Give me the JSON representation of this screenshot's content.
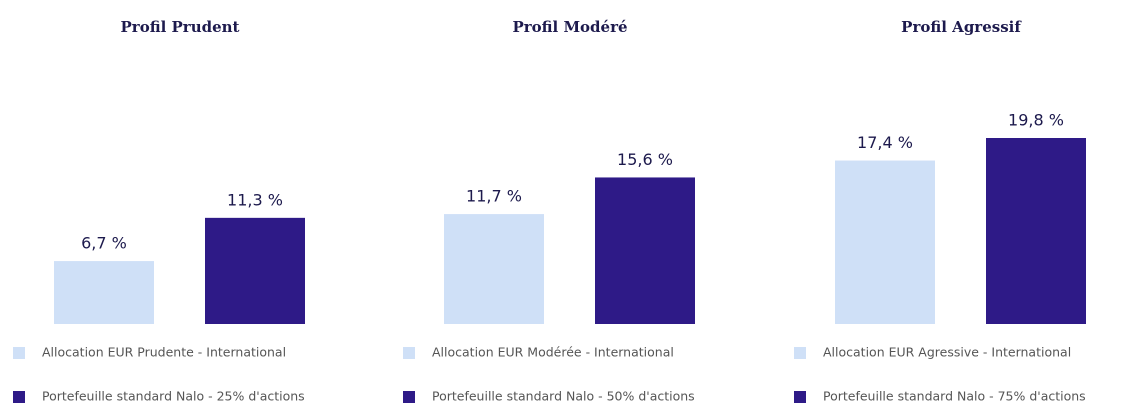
{
  "chart_data": [
    {
      "type": "bar",
      "title": "Profil Prudent",
      "categories": [
        null
      ],
      "series": [
        {
          "name": "Allocation EUR Prudente - International",
          "color": "#cfe0f7",
          "values": [
            6.7
          ],
          "value_labels": [
            "6,7 %"
          ]
        },
        {
          "name": "Portefeuille standard Nalo - 25% d'actions",
          "color": "#2e1a87",
          "values": [
            11.3
          ],
          "value_labels": [
            "11,3 %"
          ]
        }
      ]
    },
    {
      "type": "bar",
      "title": "Profil Modéré",
      "categories": [
        null
      ],
      "series": [
        {
          "name": "Allocation EUR Modérée - International",
          "color": "#cfe0f7",
          "values": [
            11.7
          ],
          "value_labels": [
            "11,7 %"
          ]
        },
        {
          "name": "Portefeuille standard Nalo - 50% d'actions",
          "color": "#2e1a87",
          "values": [
            15.6
          ],
          "value_labels": [
            "15,6 %"
          ]
        }
      ]
    },
    {
      "type": "bar",
      "title": "Profil Agressif",
      "categories": [
        null
      ],
      "series": [
        {
          "name": "Allocation EUR Agressive - International",
          "color": "#cfe0f7",
          "values": [
            17.4
          ],
          "value_labels": [
            "17,4 %"
          ]
        },
        {
          "name": "Portefeuille standard Nalo - 75% d'actions",
          "color": "#2e1a87",
          "values": [
            19.8
          ],
          "value_labels": [
            "19,8 %"
          ]
        }
      ]
    }
  ]
}
